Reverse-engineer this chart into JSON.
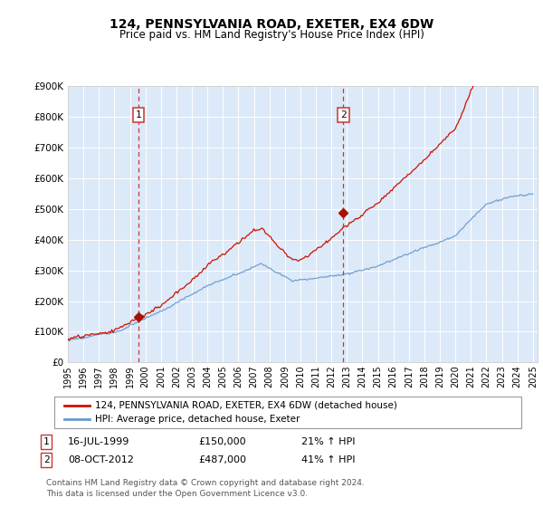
{
  "title": "124, PENNSYLVANIA ROAD, EXETER, EX4 6DW",
  "subtitle": "Price paid vs. HM Land Registry's House Price Index (HPI)",
  "plot_bg_color": "#dce9f8",
  "hpi_color": "#6699cc",
  "price_color": "#cc1100",
  "marker_color": "#aa1100",
  "vline_color": "#cc3333",
  "ylim": [
    0,
    900000
  ],
  "xlim_start": 1995.0,
  "xlim_end": 2025.3,
  "transaction1": {
    "date_num": 1999.54,
    "price": 150000,
    "label": "1",
    "text": "16-JUL-1999",
    "amount": "£150,000",
    "hpi_pct": "21% ↑ HPI"
  },
  "transaction2": {
    "date_num": 2012.77,
    "price": 487000,
    "label": "2",
    "text": "08-OCT-2012",
    "amount": "£487,000",
    "hpi_pct": "41% ↑ HPI"
  },
  "legend_line1": "124, PENNSYLVANIA ROAD, EXETER, EX4 6DW (detached house)",
  "legend_line2": "HPI: Average price, detached house, Exeter",
  "footer": "Contains HM Land Registry data © Crown copyright and database right 2024.\nThis data is licensed under the Open Government Licence v3.0.",
  "yticks": [
    0,
    100000,
    200000,
    300000,
    400000,
    500000,
    600000,
    700000,
    800000,
    900000
  ],
  "ytick_labels": [
    "£0",
    "£100K",
    "£200K",
    "£300K",
    "£400K",
    "£500K",
    "£600K",
    "£700K",
    "£800K",
    "£900K"
  ],
  "xticks": [
    1995,
    1996,
    1997,
    1998,
    1999,
    2000,
    2001,
    2002,
    2003,
    2004,
    2005,
    2006,
    2007,
    2008,
    2009,
    2010,
    2011,
    2012,
    2013,
    2014,
    2015,
    2016,
    2017,
    2018,
    2019,
    2020,
    2021,
    2022,
    2023,
    2024,
    2025
  ]
}
